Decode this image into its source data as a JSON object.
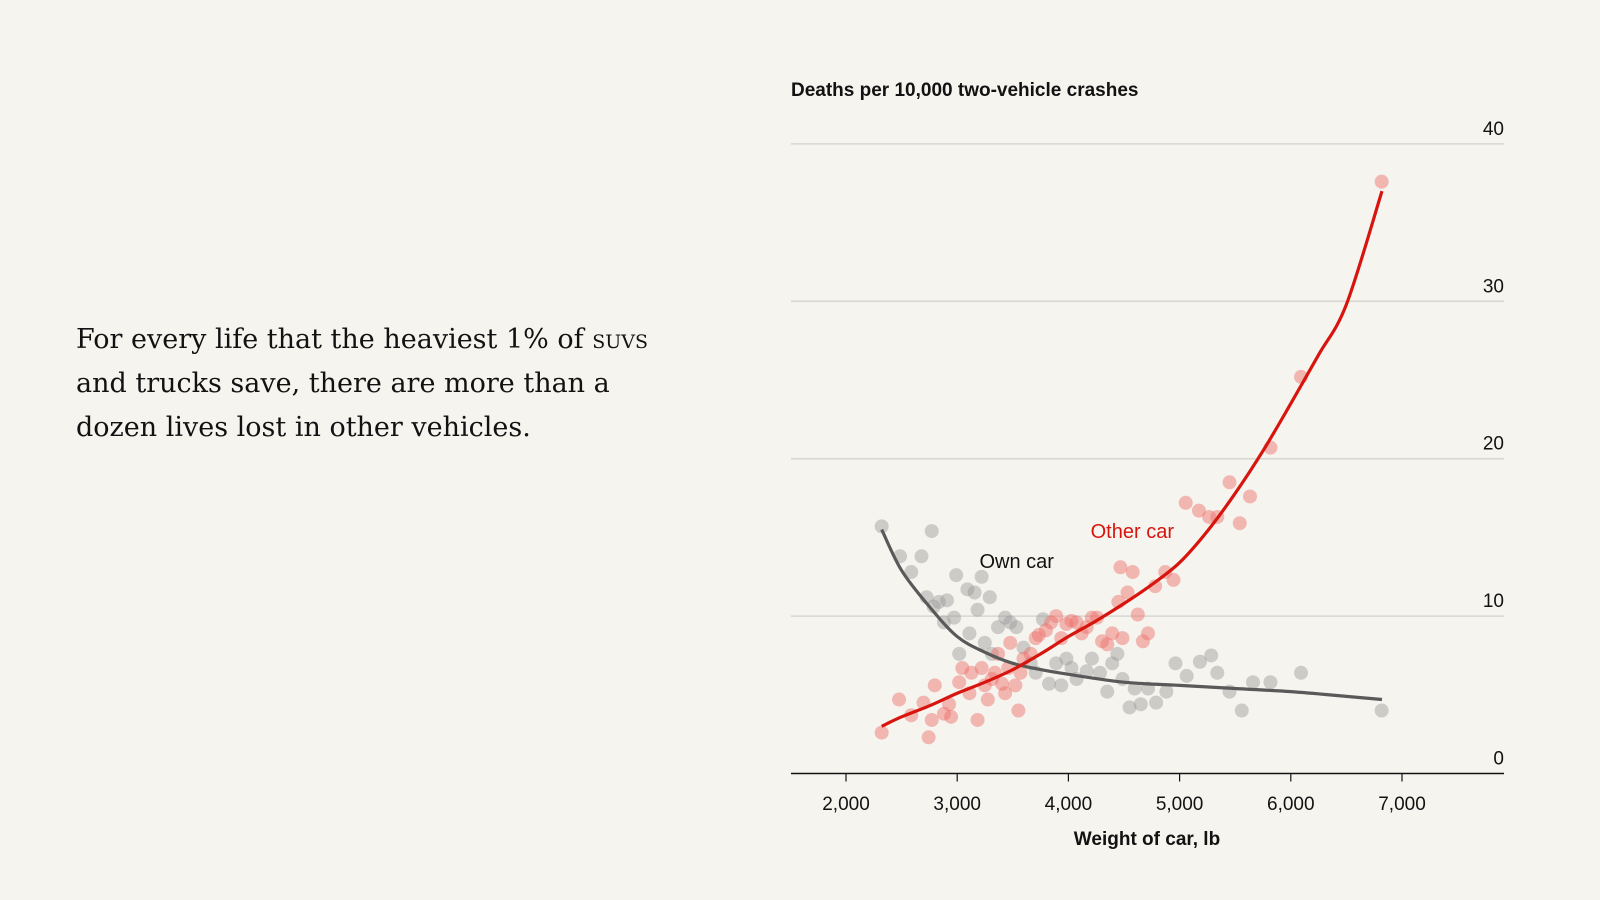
{
  "headline": {
    "before": "For every life that the heaviest 1% of ",
    "smallcaps": "suvs",
    "after": " and trucks save, there are more than a dozen lives lost in other vehicles."
  },
  "colors": {
    "background": "#f6f4ef",
    "other_car": "#d7150e",
    "other_car_dots": "#ee6b66",
    "own_car": "#595959",
    "own_car_dots": "#9a9a9a",
    "grid": "#d9d6d0"
  },
  "chart_data": {
    "type": "scatter",
    "title": "Deaths per 10,000 two-vehicle crashes",
    "xlabel": "Weight of car, lb",
    "ylabel": "Deaths per 10,000 two-vehicle crashes",
    "xlim": [
      1500,
      7900
    ],
    "ylim": [
      0,
      40
    ],
    "xticks": [
      2000,
      3000,
      4000,
      5000,
      6000,
      7000
    ],
    "xtick_labels": [
      "2,000",
      "3,000",
      "4,000",
      "5,000",
      "6,000",
      "7,000"
    ],
    "yticks": [
      0,
      10,
      20,
      30,
      40
    ],
    "ytick_labels": [
      "0",
      "10",
      "20",
      "30",
      "40"
    ],
    "grid": true,
    "series": [
      {
        "name": "Own car",
        "label": "Own car",
        "label_at": [
          3200,
          13.5
        ],
        "points": [
          [
            2321,
            15.7
          ],
          [
            2486,
            13.8
          ],
          [
            2587,
            12.8
          ],
          [
            2679,
            13.8
          ],
          [
            2771,
            15.4
          ],
          [
            2725,
            11.2
          ],
          [
            2789,
            10.6
          ],
          [
            2835,
            10.9
          ],
          [
            2908,
            11.0
          ],
          [
            2881,
            9.6
          ],
          [
            2972,
            9.9
          ],
          [
            2991,
            12.6
          ],
          [
            3092,
            11.7
          ],
          [
            3156,
            11.5
          ],
          [
            3220,
            12.5
          ],
          [
            3293,
            11.2
          ],
          [
            3018,
            7.6
          ],
          [
            3110,
            8.9
          ],
          [
            3183,
            10.4
          ],
          [
            3248,
            8.3
          ],
          [
            3312,
            7.6
          ],
          [
            3367,
            9.3
          ],
          [
            3431,
            9.9
          ],
          [
            3477,
            9.6
          ],
          [
            3532,
            9.3
          ],
          [
            3596,
            8.0
          ],
          [
            3661,
            7.0
          ],
          [
            3706,
            6.4
          ],
          [
            3771,
            9.8
          ],
          [
            3826,
            5.7
          ],
          [
            3890,
            7.0
          ],
          [
            3936,
            5.6
          ],
          [
            3982,
            7.3
          ],
          [
            4028,
            6.7
          ],
          [
            4073,
            6.0
          ],
          [
            4165,
            6.5
          ],
          [
            4211,
            7.3
          ],
          [
            4284,
            6.4
          ],
          [
            4349,
            5.2
          ],
          [
            4394,
            7.0
          ],
          [
            4440,
            7.6
          ],
          [
            4486,
            6.0
          ],
          [
            4550,
            4.2
          ],
          [
            4596,
            5.4
          ],
          [
            4651,
            4.4
          ],
          [
            4716,
            5.4
          ],
          [
            4789,
            4.5
          ],
          [
            4881,
            5.2
          ],
          [
            4963,
            7.0
          ],
          [
            5064,
            6.2
          ],
          [
            5183,
            7.1
          ],
          [
            5284,
            7.5
          ],
          [
            5339,
            6.4
          ],
          [
            5449,
            5.2
          ],
          [
            5559,
            4.0
          ],
          [
            5660,
            5.8
          ],
          [
            5817,
            5.8
          ],
          [
            6092,
            6.4
          ],
          [
            6817,
            4.0
          ]
        ],
        "trend": [
          [
            2321,
            15.5
          ],
          [
            2500,
            12.9
          ],
          [
            2750,
            10.6
          ],
          [
            3000,
            8.7
          ],
          [
            3250,
            7.7
          ],
          [
            3500,
            7.0
          ],
          [
            3750,
            6.6
          ],
          [
            4000,
            6.3
          ],
          [
            4500,
            5.8
          ],
          [
            5000,
            5.6
          ],
          [
            5500,
            5.4
          ],
          [
            6000,
            5.2
          ],
          [
            6500,
            4.9
          ],
          [
            6820,
            4.7
          ]
        ]
      },
      {
        "name": "Other car",
        "label": "Other car",
        "label_at": [
          4200,
          15.4
        ],
        "points": [
          [
            2321,
            2.6
          ],
          [
            2477,
            4.7
          ],
          [
            2587,
            3.7
          ],
          [
            2697,
            4.5
          ],
          [
            2743,
            2.3
          ],
          [
            2798,
            5.6
          ],
          [
            2771,
            3.4
          ],
          [
            2881,
            3.8
          ],
          [
            2927,
            4.4
          ],
          [
            2945,
            3.6
          ],
          [
            3018,
            5.8
          ],
          [
            3046,
            6.7
          ],
          [
            3110,
            5.1
          ],
          [
            3128,
            6.4
          ],
          [
            3183,
            3.4
          ],
          [
            3220,
            6.7
          ],
          [
            3248,
            5.6
          ],
          [
            3275,
            4.7
          ],
          [
            3312,
            6.0
          ],
          [
            3339,
            6.4
          ],
          [
            3367,
            7.6
          ],
          [
            3404,
            5.7
          ],
          [
            3431,
            5.1
          ],
          [
            3459,
            6.7
          ],
          [
            3477,
            8.3
          ],
          [
            3523,
            5.6
          ],
          [
            3550,
            4.0
          ],
          [
            3569,
            6.4
          ],
          [
            3596,
            7.3
          ],
          [
            3661,
            7.6
          ],
          [
            3706,
            8.6
          ],
          [
            3734,
            8.8
          ],
          [
            3798,
            9.1
          ],
          [
            3844,
            9.6
          ],
          [
            3890,
            10.0
          ],
          [
            3936,
            8.6
          ],
          [
            3982,
            9.5
          ],
          [
            4028,
            9.7
          ],
          [
            4073,
            9.6
          ],
          [
            4119,
            8.9
          ],
          [
            4165,
            9.3
          ],
          [
            4211,
            9.9
          ],
          [
            4257,
            9.9
          ],
          [
            4303,
            8.4
          ],
          [
            4349,
            8.2
          ],
          [
            4394,
            8.9
          ],
          [
            4449,
            10.9
          ],
          [
            4468,
            13.1
          ],
          [
            4486,
            8.6
          ],
          [
            4532,
            11.5
          ],
          [
            4578,
            12.8
          ],
          [
            4624,
            10.1
          ],
          [
            4670,
            8.4
          ],
          [
            4716,
            8.9
          ],
          [
            4780,
            11.9
          ],
          [
            4871,
            12.8
          ],
          [
            4945,
            12.3
          ],
          [
            5055,
            17.2
          ],
          [
            5174,
            16.7
          ],
          [
            5266,
            16.3
          ],
          [
            5339,
            16.3
          ],
          [
            5449,
            18.5
          ],
          [
            5541,
            15.9
          ],
          [
            5633,
            17.6
          ],
          [
            5817,
            20.7
          ],
          [
            6092,
            25.2
          ],
          [
            6817,
            37.6
          ]
        ],
        "trend": [
          [
            2321,
            3.0
          ],
          [
            2500,
            3.6
          ],
          [
            2750,
            4.3
          ],
          [
            3000,
            5.1
          ],
          [
            3250,
            5.8
          ],
          [
            3500,
            6.6
          ],
          [
            3750,
            7.6
          ],
          [
            4000,
            8.7
          ],
          [
            4250,
            9.7
          ],
          [
            4500,
            10.8
          ],
          [
            4750,
            12.0
          ],
          [
            5000,
            13.4
          ],
          [
            5250,
            15.4
          ],
          [
            5500,
            17.8
          ],
          [
            5750,
            20.5
          ],
          [
            6000,
            23.5
          ],
          [
            6250,
            26.6
          ],
          [
            6500,
            29.8
          ],
          [
            6820,
            37.0
          ]
        ]
      }
    ]
  }
}
